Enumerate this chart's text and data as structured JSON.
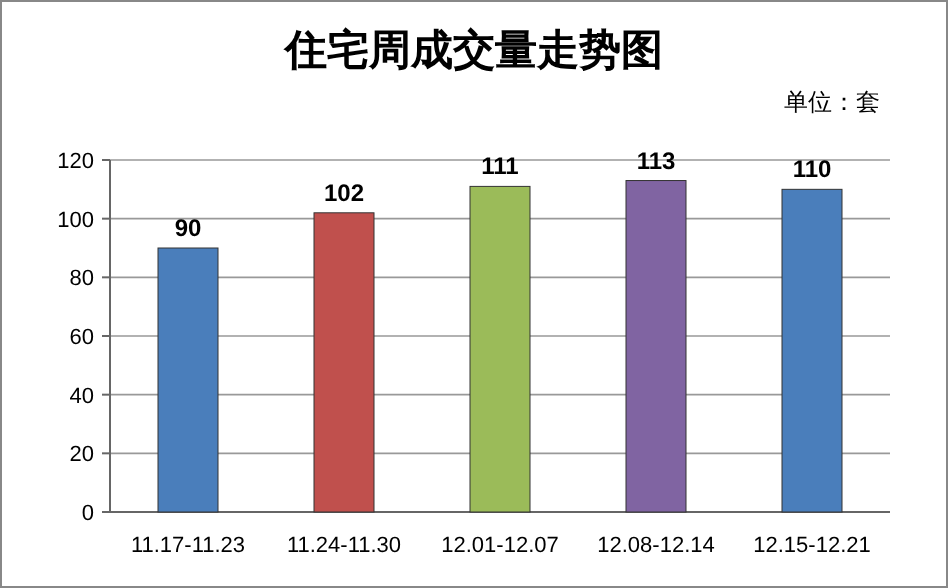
{
  "chart_data": {
    "type": "bar",
    "title": "住宅周成交量走势图",
    "annotations": [
      "单位：套"
    ],
    "categories": [
      "11.17-11.23",
      "11.24-11.30",
      "12.01-12.07",
      "12.08-12.14",
      "12.15-12.21"
    ],
    "values": [
      90,
      102,
      111,
      113,
      110
    ],
    "colors": [
      "#4a7ebb",
      "#c0504d",
      "#9bbb59",
      "#8064a2",
      "#4a7ebb"
    ],
    "ylim": [
      0,
      120
    ],
    "yticks": [
      0,
      20,
      40,
      60,
      80,
      100,
      120
    ],
    "grid": "y",
    "data_labels": true
  }
}
